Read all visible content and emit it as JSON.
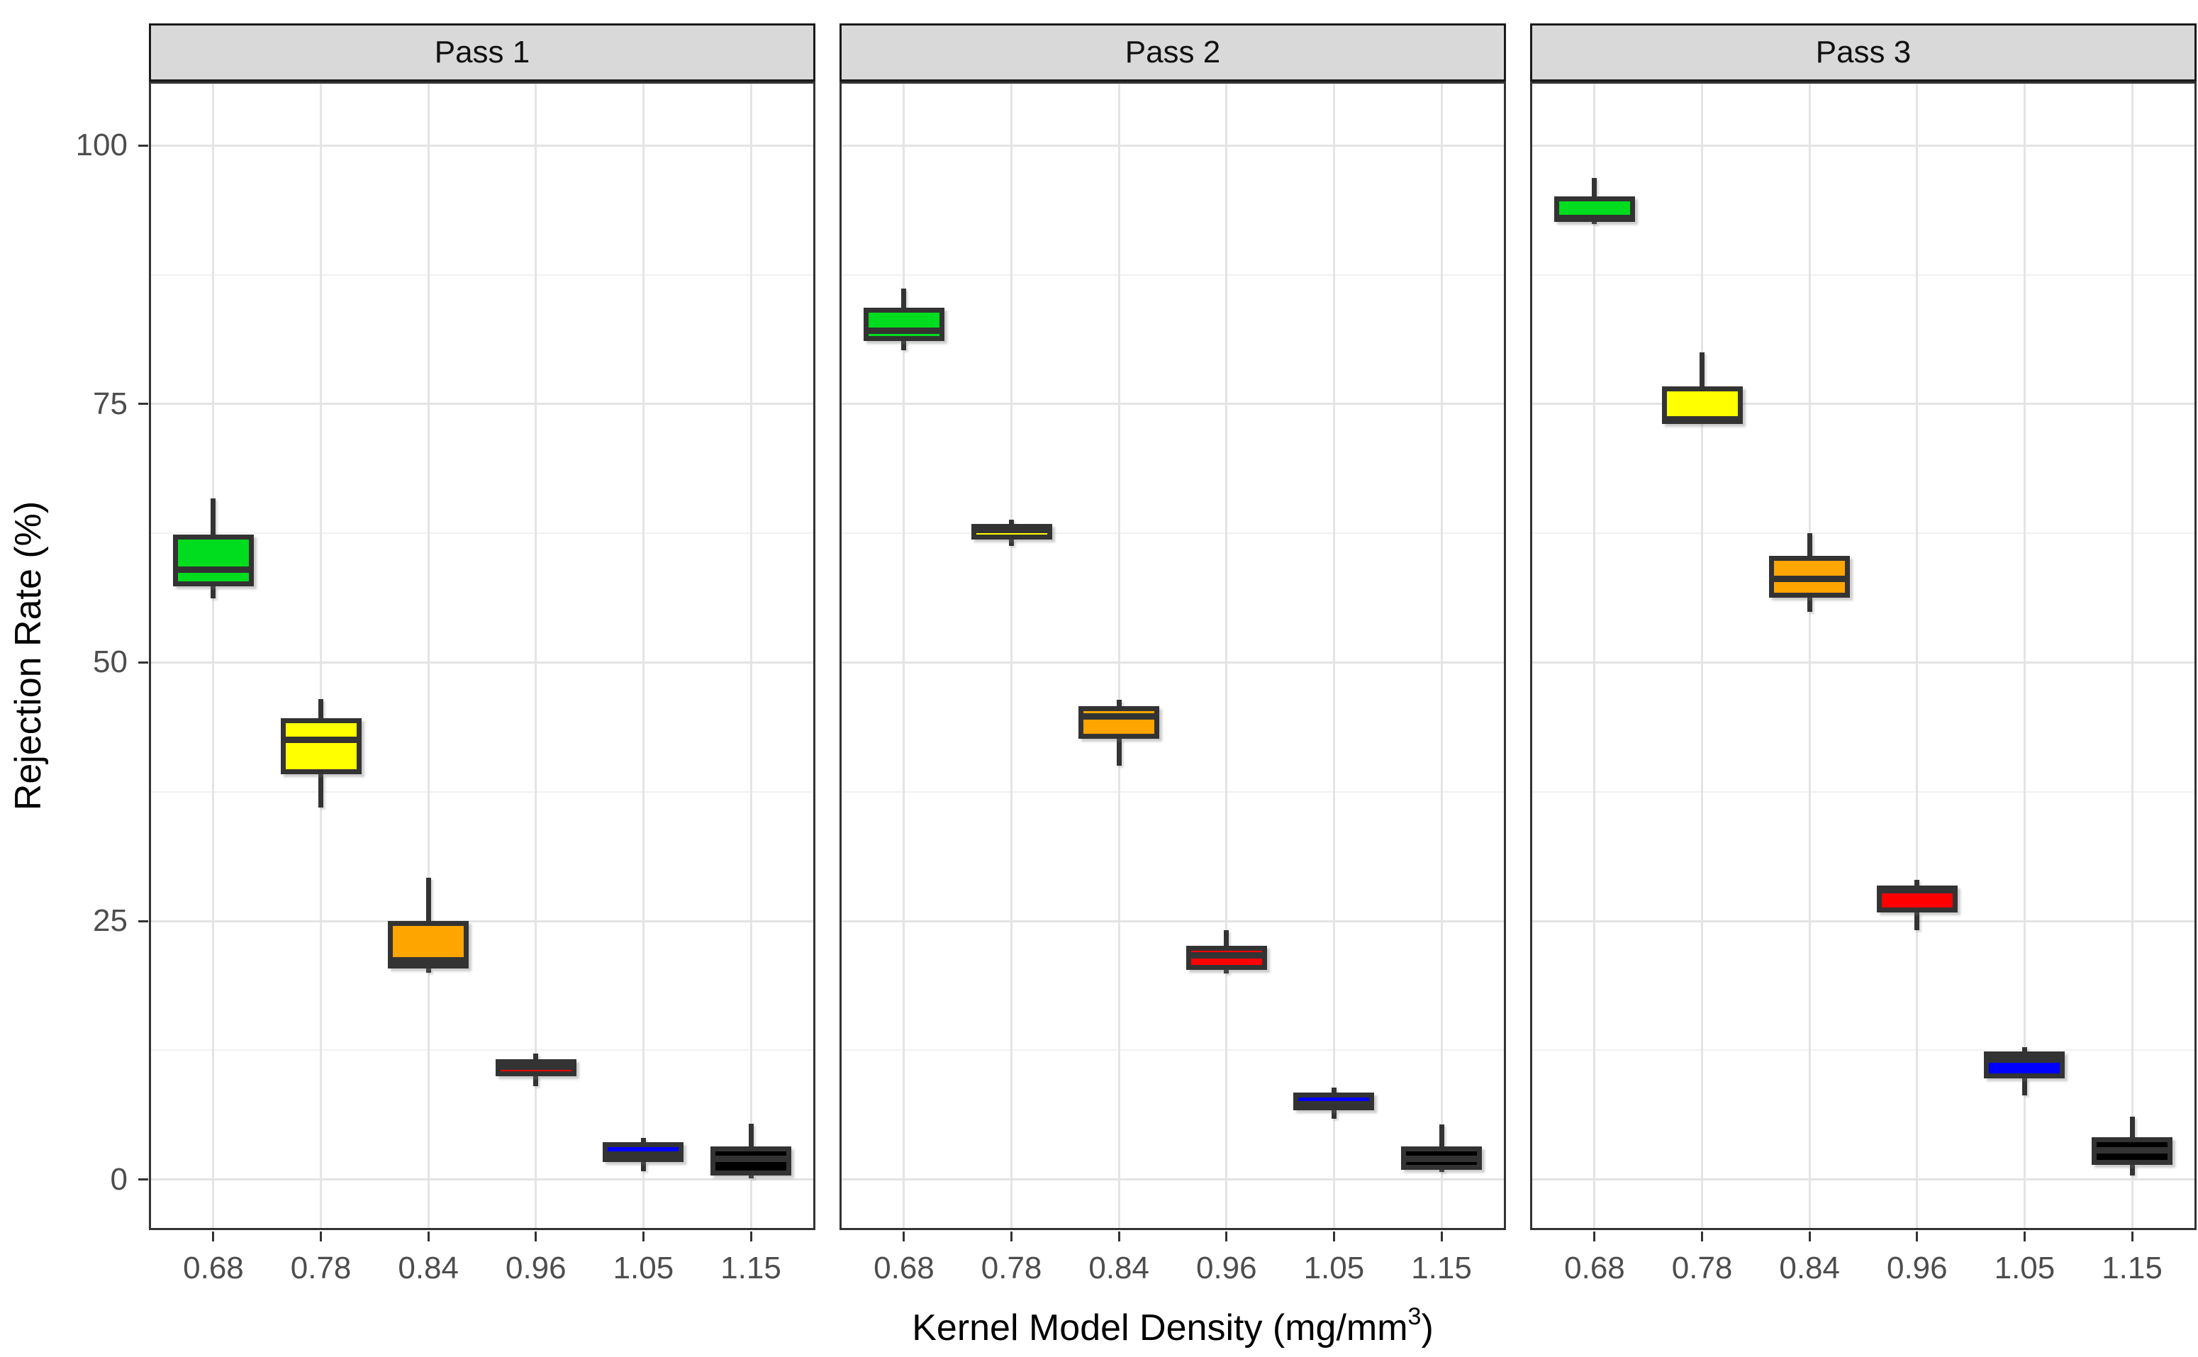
{
  "chart_data": {
    "type": "boxplot",
    "facet_variable": "Pass",
    "xlabel": "Kernel Model Density (mg/mm³)",
    "xlabel_prefix": "Kernel Model Density (mg/mm",
    "xlabel_superscript": "3",
    "xlabel_suffix": ")",
    "ylabel": "Rejection Rate (%)",
    "categories": [
      "0.68",
      "0.78",
      "0.84",
      "0.96",
      "1.05",
      "1.15"
    ],
    "y_breaks": [
      0,
      25,
      50,
      75,
      100
    ],
    "y_break_labels": [
      "0",
      "25",
      "50",
      "75",
      "100"
    ],
    "y_minor_breaks": [
      12.5,
      37.5,
      62.5,
      87.5
    ],
    "ylim": [
      -4.9,
      106.2
    ],
    "grid": true,
    "legend_position": "none",
    "category_colors": {
      "0.68": "#00DD1E",
      "0.78": "#FFFF00",
      "0.84": "#FFA500",
      "0.96": "#FF0000",
      "1.05": "#0000FF",
      "1.15": "#000000"
    },
    "style_colors": {
      "box_border": "#333333",
      "strip_background": "#D9D9D9",
      "strip_border": "#1A1A1A",
      "panel_border": "#333333",
      "grid_major": "#E4E4E4",
      "grid_minor": "#F1F1F1",
      "axis_text": "#4D4D4D",
      "title_text": "#000000"
    },
    "facets": [
      {
        "label": "Pass 1",
        "boxes": [
          {
            "category": "0.68",
            "color": "#00DD1E",
            "whisker_low": 56.2,
            "q1": 57.4,
            "median": 59.0,
            "q3": 62.4,
            "whisker_high": 65.9
          },
          {
            "category": "0.78",
            "color": "#FFFF00",
            "whisker_low": 36.0,
            "q1": 39.2,
            "median": 42.5,
            "q3": 44.6,
            "whisker_high": 46.5
          },
          {
            "category": "0.84",
            "color": "#FFA500",
            "whisker_low": 20.0,
            "q1": 20.4,
            "median": 21.2,
            "q3": 25.0,
            "whisker_high": 29.2
          },
          {
            "category": "0.96",
            "color": "#FF0000",
            "whisker_low": 9.0,
            "q1": 10.0,
            "median": 10.9,
            "q3": 11.6,
            "whisker_high": 12.2
          },
          {
            "category": "1.05",
            "color": "#0000FF",
            "whisker_low": 0.8,
            "q1": 1.7,
            "median": 2.4,
            "q3": 3.6,
            "whisker_high": 4.0
          },
          {
            "category": "1.15",
            "color": "#000000",
            "whisker_low": 0.1,
            "q1": 0.4,
            "median": 2.0,
            "q3": 3.2,
            "whisker_high": 5.4
          }
        ]
      },
      {
        "label": "Pass 2",
        "boxes": [
          {
            "category": "0.68",
            "color": "#00DD1E",
            "whisker_low": 80.2,
            "q1": 81.1,
            "median": 82.1,
            "q3": 84.3,
            "whisker_high": 86.2
          },
          {
            "category": "0.78",
            "color": "#FFFF00",
            "whisker_low": 61.3,
            "q1": 61.9,
            "median": 62.8,
            "q3": 63.4,
            "whisker_high": 63.8
          },
          {
            "category": "0.84",
            "color": "#FFA500",
            "whisker_low": 40.0,
            "q1": 42.6,
            "median": 44.8,
            "q3": 45.8,
            "whisker_high": 46.4
          },
          {
            "category": "0.96",
            "color": "#FF0000",
            "whisker_low": 19.9,
            "q1": 20.3,
            "median": 21.7,
            "q3": 22.6,
            "whisker_high": 24.1
          },
          {
            "category": "1.05",
            "color": "#0000FF",
            "whisker_low": 5.9,
            "q1": 6.7,
            "median": 7.3,
            "q3": 8.4,
            "whisker_high": 8.9
          },
          {
            "category": "1.15",
            "color": "#000000",
            "whisker_low": 0.7,
            "q1": 0.9,
            "median": 2.0,
            "q3": 3.2,
            "whisker_high": 5.3
          }
        ]
      },
      {
        "label": "Pass 3",
        "boxes": [
          {
            "category": "0.68",
            "color": "#00DD1E",
            "whisker_low": 92.4,
            "q1": 92.6,
            "median": 93.0,
            "q3": 95.1,
            "whisker_high": 96.9
          },
          {
            "category": "0.78",
            "color": "#FFFF00",
            "whisker_low": 73.0,
            "q1": 73.1,
            "median": 73.5,
            "q3": 76.7,
            "whisker_high": 80.0
          },
          {
            "category": "0.84",
            "color": "#FFA500",
            "whisker_low": 54.9,
            "q1": 56.3,
            "median": 58.1,
            "q3": 60.3,
            "whisker_high": 62.5
          },
          {
            "category": "0.96",
            "color": "#FF0000",
            "whisker_low": 24.1,
            "q1": 25.8,
            "median": 28.0,
            "q3": 28.4,
            "whisker_high": 29.0
          },
          {
            "category": "1.05",
            "color": "#0000FF",
            "whisker_low": 8.1,
            "q1": 9.8,
            "median": 11.6,
            "q3": 12.4,
            "whisker_high": 12.8
          },
          {
            "category": "1.15",
            "color": "#000000",
            "whisker_low": 0.4,
            "q1": 1.4,
            "median": 2.8,
            "q3": 4.1,
            "whisker_high": 6.1
          }
        ]
      }
    ]
  }
}
